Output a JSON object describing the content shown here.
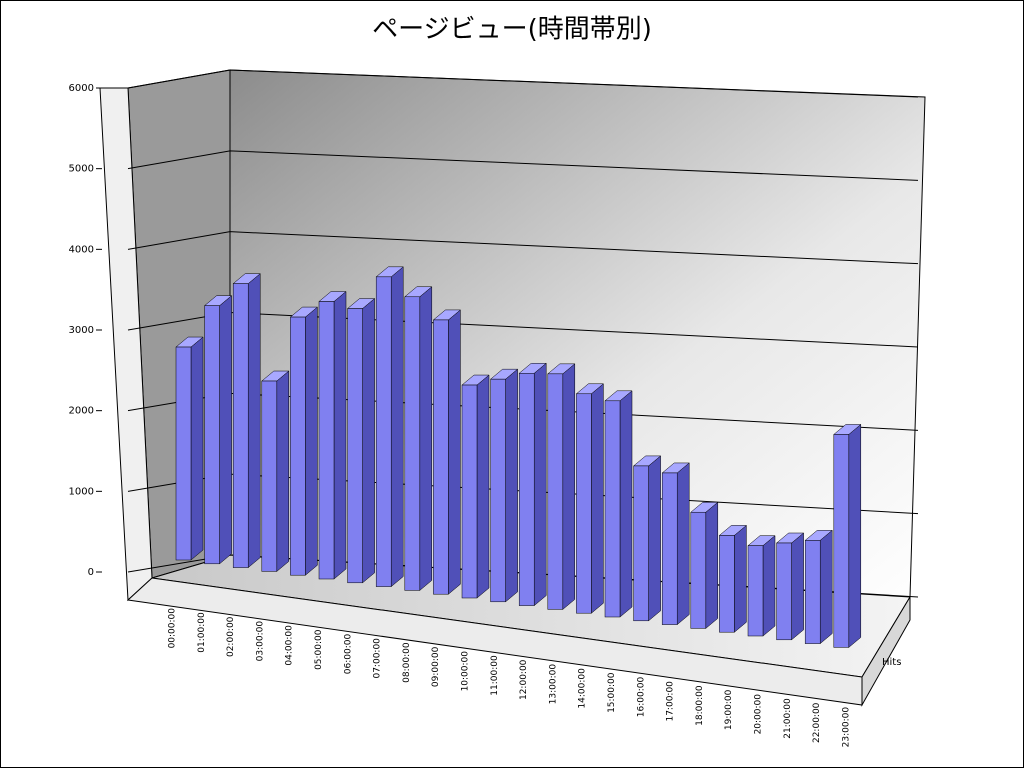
{
  "chart_data": {
    "type": "bar3d",
    "title": "ページビュー(時間帯別)",
    "categories": [
      "00:00:00",
      "01:00:00",
      "02:00:00",
      "03:00:00",
      "04:00:00",
      "05:00:00",
      "06:00:00",
      "07:00:00",
      "08:00:00",
      "09:00:00",
      "10:00:00",
      "11:00:00",
      "12:00:00",
      "13:00:00",
      "14:00:00",
      "15:00:00",
      "16:00:00",
      "17:00:00",
      "18:00:00",
      "19:00:00",
      "20:00:00",
      "21:00:00",
      "22:00:00",
      "23:00:00"
    ],
    "series": [
      {
        "name": "Hits",
        "color": "#8080f0",
        "values": [
          3300,
          4000,
          4400,
          2950,
          4000,
          4300,
          4250,
          4800,
          4550,
          4250,
          3300,
          3450,
          3600,
          3650,
          3400,
          3350,
          2400,
          2350,
          1800,
          1500,
          1400,
          1500,
          1600,
          3300
        ]
      }
    ],
    "ylim": [
      0,
      6000
    ],
    "yticks": [
      0,
      1000,
      2000,
      3000,
      4000,
      5000,
      6000
    ],
    "grid": true
  }
}
